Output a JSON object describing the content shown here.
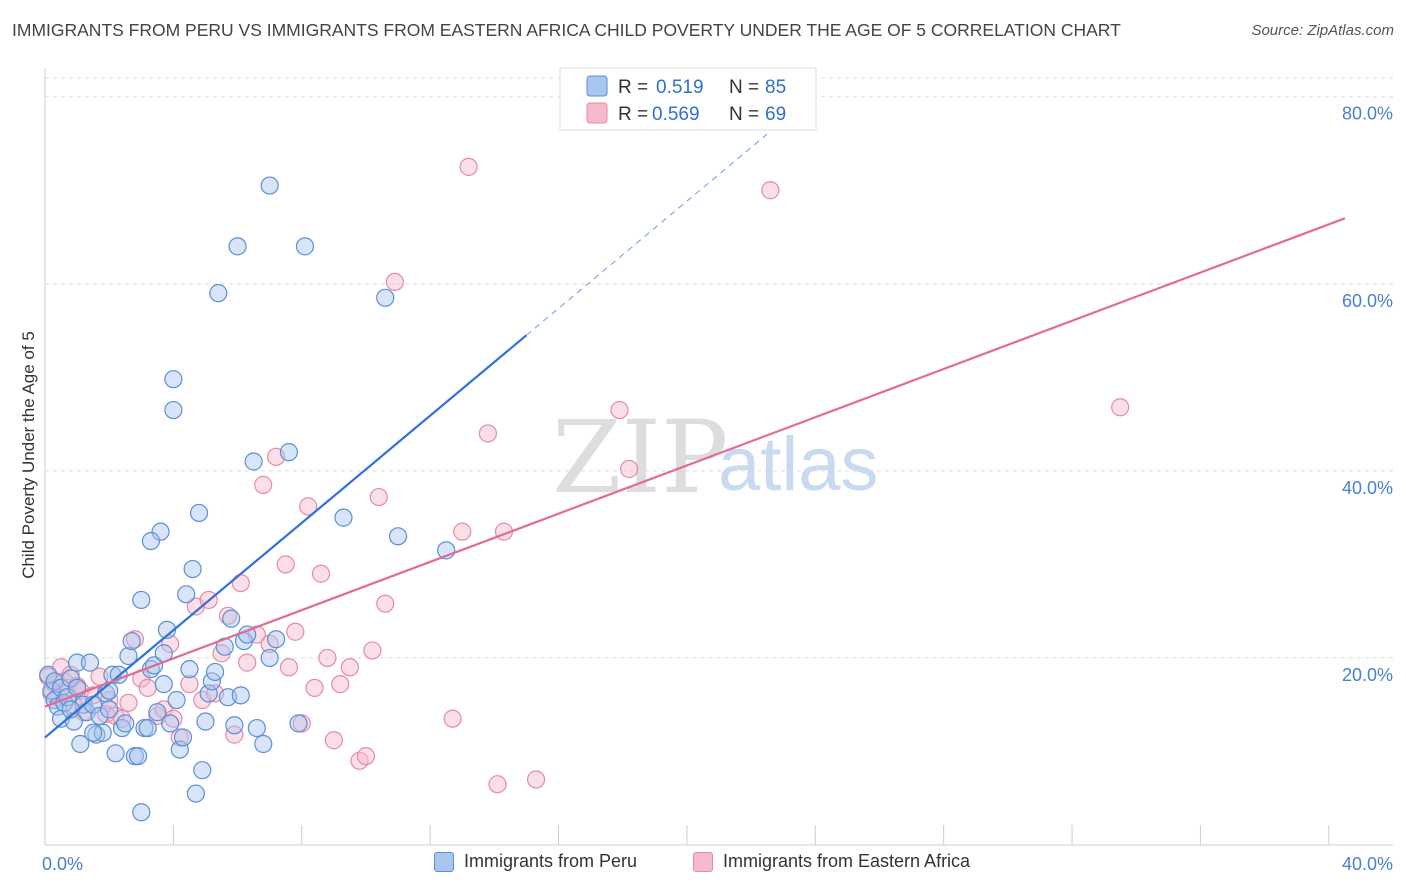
{
  "header": {
    "title": "IMMIGRANTS FROM PERU VS IMMIGRANTS FROM EASTERN AFRICA CHILD POVERTY UNDER THE AGE OF 5 CORRELATION CHART",
    "source": "Source: ZipAtlas.com"
  },
  "watermark": {
    "zip": "ZIP",
    "atlas": "atlas"
  },
  "colors": {
    "peru_fill": "#a9c6ef",
    "peru_stroke": "#5b8fd6",
    "peru_line": "#2f72d6",
    "ea_fill": "#f7b9cc",
    "ea_stroke": "#e68aa8",
    "ea_line": "#e06b93",
    "grid": "#dddddd",
    "tick_text": "#4a7fd0"
  },
  "legend": {
    "r_label": "R =",
    "n_label": "N =",
    "peru": {
      "r": "0.519",
      "n": "85"
    },
    "ea": {
      "r": "0.569",
      "n": "69"
    }
  },
  "bottom_legend": {
    "peru": "Immigrants from Peru",
    "ea": "Immigrants from Eastern Africa"
  },
  "chart_data": {
    "type": "scatter",
    "title": "IMMIGRANTS FROM PERU VS IMMIGRANTS FROM EASTERN AFRICA CHILD POVERTY UNDER THE AGE OF 5 CORRELATION CHART",
    "xlabel": "",
    "ylabel": "Child Poverty Under the Age of 5",
    "xlim": [
      0,
      42
    ],
    "ylim": [
      0,
      82
    ],
    "x_tick_labels": [
      {
        "value": 0,
        "label": "0.0%"
      },
      {
        "value": 40,
        "label": "40.0%"
      }
    ],
    "x_minor_ticks": [
      0,
      4,
      8,
      12,
      16,
      20,
      24,
      28,
      32,
      36,
      40
    ],
    "y_ticks": [
      {
        "value": 20,
        "label": "20.0%"
      },
      {
        "value": 40,
        "label": "40.0%"
      },
      {
        "value": 60,
        "label": "60.0%"
      },
      {
        "value": 80,
        "label": "80.0%"
      }
    ],
    "grid": true,
    "legend_position": "top-center",
    "series": [
      {
        "name": "Immigrants from Peru",
        "r": 0.519,
        "n": 85,
        "trend": {
          "x0": 0,
          "y0": 11.5,
          "x1": 15.0,
          "y1": 54.5,
          "dash_to_x": 22.5,
          "dash_to_y": 76
        },
        "points": [
          [
            0.1,
            18.2
          ],
          [
            0.2,
            16.5
          ],
          [
            0.3,
            17.5
          ],
          [
            0.3,
            15.5
          ],
          [
            0.4,
            14.8
          ],
          [
            0.5,
            16.8
          ],
          [
            0.5,
            13.5
          ],
          [
            0.6,
            15.2
          ],
          [
            0.7,
            15.8
          ],
          [
            0.8,
            17.8
          ],
          [
            0.9,
            13.2
          ],
          [
            1.0,
            16.8
          ],
          [
            1.0,
            19.5
          ],
          [
            1.1,
            10.8
          ],
          [
            1.2,
            15.0
          ],
          [
            1.3,
            14.2
          ],
          [
            1.4,
            19.5
          ],
          [
            1.5,
            15.0
          ],
          [
            1.6,
            11.8
          ],
          [
            1.7,
            13.8
          ],
          [
            1.8,
            12.0
          ],
          [
            1.9,
            16.2
          ],
          [
            2.0,
            14.5
          ],
          [
            2.1,
            18.2
          ],
          [
            2.2,
            9.8
          ],
          [
            2.3,
            18.2
          ],
          [
            2.4,
            12.5
          ],
          [
            2.5,
            13.0
          ],
          [
            2.6,
            20.2
          ],
          [
            2.7,
            21.8
          ],
          [
            2.8,
            9.5
          ],
          [
            2.9,
            9.5
          ],
          [
            3.0,
            3.5
          ],
          [
            3.0,
            26.2
          ],
          [
            3.1,
            12.5
          ],
          [
            3.2,
            12.5
          ],
          [
            3.3,
            18.8
          ],
          [
            3.4,
            19.2
          ],
          [
            3.5,
            14.2
          ],
          [
            3.6,
            33.5
          ],
          [
            3.7,
            20.5
          ],
          [
            3.7,
            17.2
          ],
          [
            3.8,
            23.0
          ],
          [
            3.9,
            13.0
          ],
          [
            4.0,
            49.8
          ],
          [
            4.0,
            46.5
          ],
          [
            4.1,
            15.5
          ],
          [
            4.2,
            10.2
          ],
          [
            4.3,
            11.5
          ],
          [
            4.4,
            26.8
          ],
          [
            4.5,
            18.8
          ],
          [
            4.6,
            29.5
          ],
          [
            4.7,
            5.5
          ],
          [
            4.8,
            35.5
          ],
          [
            4.9,
            8.0
          ],
          [
            5.0,
            13.2
          ],
          [
            5.1,
            16.2
          ],
          [
            5.2,
            17.5
          ],
          [
            5.3,
            18.5
          ],
          [
            5.4,
            59.0
          ],
          [
            5.6,
            21.2
          ],
          [
            5.7,
            15.8
          ],
          [
            5.8,
            24.2
          ],
          [
            5.9,
            12.8
          ],
          [
            6.0,
            64.0
          ],
          [
            6.1,
            16.0
          ],
          [
            6.2,
            21.8
          ],
          [
            6.3,
            22.5
          ],
          [
            6.5,
            41.0
          ],
          [
            6.6,
            12.5
          ],
          [
            6.8,
            10.8
          ],
          [
            7.0,
            20.0
          ],
          [
            7.2,
            22.0
          ],
          [
            7.0,
            70.5
          ],
          [
            7.6,
            42.0
          ],
          [
            7.9,
            13.0
          ],
          [
            8.1,
            64.0
          ],
          [
            9.3,
            35.0
          ],
          [
            10.6,
            58.5
          ],
          [
            11.0,
            33.0
          ],
          [
            12.5,
            31.5
          ],
          [
            3.3,
            32.5
          ],
          [
            1.5,
            12.0
          ],
          [
            2.0,
            16.5
          ],
          [
            0.8,
            14.5
          ]
        ]
      },
      {
        "name": "Immigrants from Eastern Africa",
        "r": 0.569,
        "n": 69,
        "trend": {
          "x0": 0,
          "y0": 14.8,
          "x1": 40.5,
          "y1": 67.0
        },
        "points": [
          [
            0.1,
            18.0
          ],
          [
            0.2,
            16.2
          ],
          [
            0.3,
            17.2
          ],
          [
            0.4,
            15.8
          ],
          [
            0.5,
            19.0
          ],
          [
            0.6,
            17.5
          ],
          [
            0.7,
            16.8
          ],
          [
            0.8,
            18.2
          ],
          [
            0.9,
            15.0
          ],
          [
            1.0,
            17.0
          ],
          [
            1.1,
            16.5
          ],
          [
            1.2,
            14.2
          ],
          [
            1.5,
            16.0
          ],
          [
            1.7,
            18.0
          ],
          [
            1.9,
            14.0
          ],
          [
            2.0,
            15.5
          ],
          [
            2.2,
            13.8
          ],
          [
            2.4,
            13.5
          ],
          [
            2.6,
            15.2
          ],
          [
            2.8,
            22.0
          ],
          [
            3.0,
            17.8
          ],
          [
            3.2,
            16.8
          ],
          [
            3.5,
            13.8
          ],
          [
            3.7,
            14.5
          ],
          [
            3.9,
            21.5
          ],
          [
            4.0,
            13.5
          ],
          [
            4.2,
            11.5
          ],
          [
            4.5,
            17.2
          ],
          [
            4.7,
            25.5
          ],
          [
            4.9,
            15.5
          ],
          [
            5.1,
            26.2
          ],
          [
            5.3,
            16.2
          ],
          [
            5.5,
            20.5
          ],
          [
            5.7,
            24.5
          ],
          [
            5.9,
            11.8
          ],
          [
            6.1,
            28.0
          ],
          [
            6.3,
            19.5
          ],
          [
            6.6,
            22.5
          ],
          [
            6.8,
            38.5
          ],
          [
            7.0,
            21.5
          ],
          [
            7.2,
            41.5
          ],
          [
            7.5,
            30.0
          ],
          [
            7.6,
            19.0
          ],
          [
            7.8,
            22.8
          ],
          [
            8.0,
            13.0
          ],
          [
            8.2,
            36.2
          ],
          [
            8.4,
            16.8
          ],
          [
            8.6,
            29.0
          ],
          [
            8.8,
            20.0
          ],
          [
            9.0,
            11.2
          ],
          [
            9.2,
            17.2
          ],
          [
            9.5,
            19.0
          ],
          [
            9.8,
            9.0
          ],
          [
            10.0,
            9.5
          ],
          [
            10.2,
            20.8
          ],
          [
            10.4,
            37.2
          ],
          [
            10.6,
            25.8
          ],
          [
            10.9,
            60.2
          ],
          [
            12.7,
            13.5
          ],
          [
            13.0,
            33.5
          ],
          [
            13.2,
            72.5
          ],
          [
            13.8,
            44.0
          ],
          [
            14.1,
            6.5
          ],
          [
            14.3,
            33.5
          ],
          [
            15.3,
            7.0
          ],
          [
            17.9,
            46.5
          ],
          [
            18.2,
            40.2
          ],
          [
            22.6,
            70.0
          ],
          [
            33.5,
            46.8
          ]
        ]
      }
    ]
  }
}
